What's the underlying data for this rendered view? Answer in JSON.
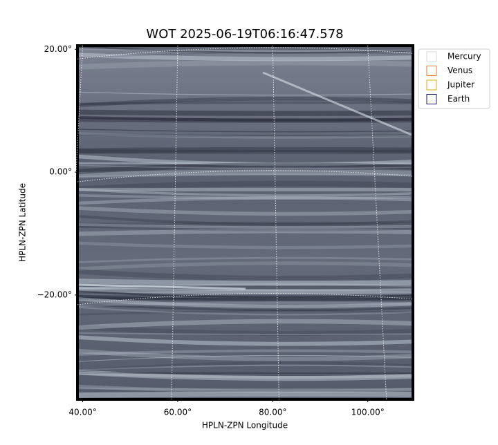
{
  "chart_data": {
    "type": "image",
    "title": "WOT 2025-06-19T06:16:47.578",
    "xlabel": "HPLN-ZPN Longitude",
    "ylabel": "HPLN-ZPN Latitude",
    "xlim": [
      38.9,
      109.5
    ],
    "ylim": [
      -37,
      20.6
    ],
    "xticks": [
      {
        "value": 40,
        "label": "40.00°"
      },
      {
        "value": 60,
        "label": "60.00°"
      },
      {
        "value": 80,
        "label": "80.00°"
      },
      {
        "value": 100,
        "label": "100.00°"
      }
    ],
    "yticks": [
      {
        "value": 20,
        "label": "20.00°"
      },
      {
        "value": 0,
        "label": "0.00°"
      },
      {
        "value": -20,
        "label": "−20.00°"
      }
    ],
    "grid": true,
    "legend": "upper right",
    "series": [
      {
        "name": "Mercury",
        "color": "#d9d9d9"
      },
      {
        "name": "Venus",
        "color": "#e07b39"
      },
      {
        "name": "Jupiter",
        "color": "#e6a817"
      },
      {
        "name": "Earth",
        "color": "#1a1a80"
      }
    ]
  }
}
